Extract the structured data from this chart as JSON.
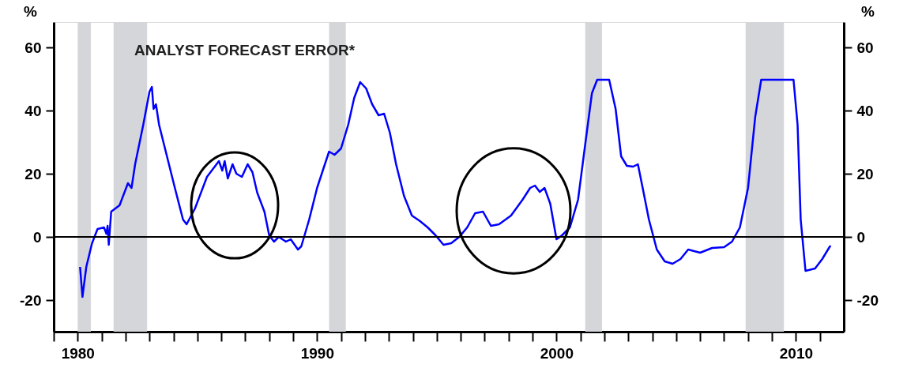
{
  "chart_data": {
    "type": "line",
    "title": "ANALYST FORECAST ERROR*",
    "ylabel": "%",
    "y2label": "%",
    "xlim": [
      1979,
      2012
    ],
    "xticks": [
      {
        "value": 1979,
        "label": null
      },
      1980,
      {
        "value": 1981,
        "label": null
      },
      {
        "value": 1982,
        "label": null
      },
      {
        "value": 1983,
        "label": null
      },
      {
        "value": 1984,
        "label": null
      },
      {
        "value": 1985,
        "label": null
      },
      {
        "value": 1986,
        "label": null
      },
      {
        "value": 1987,
        "label": null
      },
      {
        "value": 1988,
        "label": null
      },
      {
        "value": 1989,
        "label": null
      },
      1990,
      {
        "value": 1991,
        "label": null
      },
      {
        "value": 1992,
        "label": null
      },
      {
        "value": 1993,
        "label": null
      },
      {
        "value": 1994,
        "label": null
      },
      {
        "value": 1995,
        "label": null
      },
      {
        "value": 1996,
        "label": null
      },
      {
        "value": 1997,
        "label": null
      },
      {
        "value": 1998,
        "label": null
      },
      {
        "value": 1999,
        "label": null
      },
      2000,
      {
        "value": 2001,
        "label": null
      },
      {
        "value": 2002,
        "label": null
      },
      {
        "value": 2003,
        "label": null
      },
      {
        "value": 2004,
        "label": null
      },
      {
        "value": 2005,
        "label": null
      },
      {
        "value": 2006,
        "label": null
      },
      {
        "value": 2007,
        "label": null
      },
      {
        "value": 2008,
        "label": null
      },
      {
        "value": 2009,
        "label": null
      },
      2010,
      {
        "value": 2011,
        "label": null
      }
    ],
    "ylim": [
      -30,
      68
    ],
    "yticks": [
      -20,
      0,
      20,
      40,
      60
    ],
    "y2lim": [
      -30,
      68
    ],
    "y2ticks": [
      -20,
      0,
      20,
      40,
      60
    ],
    "grid": false,
    "marker": "none",
    "line_style": "solid",
    "x": [
      1980.1,
      1980.2,
      1980.36,
      1980.6,
      1980.83,
      1981.1,
      1981.2,
      1981.25,
      1981.3,
      1981.4,
      1981.75,
      1982.1,
      1982.25,
      1982.4,
      1982.74,
      1983.0,
      1983.1,
      1983.17,
      1983.27,
      1983.4,
      1983.73,
      1984.06,
      1984.4,
      1984.55,
      1984.9,
      1985.4,
      1985.9,
      1986.04,
      1986.14,
      1986.27,
      1986.47,
      1986.63,
      1986.86,
      1987.1,
      1987.3,
      1987.5,
      1987.8,
      1988.0,
      1988.2,
      1988.4,
      1988.7,
      1988.9,
      1989.2,
      1989.34,
      1989.67,
      1990.0,
      1990.26,
      1990.5,
      1990.73,
      1991.0,
      1991.3,
      1991.55,
      1991.8,
      1992.05,
      1992.3,
      1992.57,
      1992.8,
      1993.04,
      1993.3,
      1993.63,
      1993.96,
      1994.3,
      1994.62,
      1994.95,
      1995.28,
      1995.6,
      1995.94,
      1996.27,
      1996.6,
      1996.93,
      1997.26,
      1997.6,
      1998.1,
      1998.58,
      1998.9,
      1999.1,
      1999.3,
      1999.5,
      1999.74,
      2000.0,
      2000.23,
      2000.56,
      2000.9,
      2001.22,
      2001.48,
      2001.7,
      2002.2,
      2002.47,
      2002.7,
      2002.94,
      2003.2,
      2003.4,
      2003.6,
      2003.86,
      2004.19,
      2004.52,
      2004.85,
      2005.18,
      2005.5,
      2006.0,
      2006.5,
      2007.0,
      2007.33,
      2007.66,
      2008.0,
      2008.3,
      2008.55,
      2009.9,
      2010.07,
      2010.2,
      2010.4,
      2010.8,
      2011.1,
      2011.4,
      2011.45
    ],
    "series": [
      {
        "color": "#0000ff",
        "values": [
          -9.5,
          -19,
          -9.5,
          -2,
          2.5,
          3,
          1,
          3.5,
          -2.5,
          8,
          10,
          17,
          15.5,
          23,
          35.5,
          46,
          47.5,
          40.5,
          42,
          35.5,
          25.5,
          15.5,
          5.5,
          4,
          9,
          19,
          24,
          21,
          24,
          18.5,
          23,
          20,
          19,
          23,
          20.5,
          14,
          8,
          0.5,
          -1.5,
          0,
          -1.5,
          -0.75,
          -4,
          -3,
          5.5,
          15.5,
          21.5,
          27,
          26,
          28,
          35.5,
          44,
          49,
          47,
          42,
          38.5,
          39,
          33,
          23,
          13,
          6.75,
          5,
          3,
          0.5,
          -2.5,
          -2,
          0,
          3,
          7.5,
          8,
          3.5,
          4,
          6.75,
          11.75,
          15.5,
          16.25,
          14.25,
          15.5,
          10.5,
          -0.75,
          0.5,
          3,
          11.75,
          30.5,
          45.5,
          49.75,
          49.75,
          40.5,
          25.5,
          22.5,
          22.25,
          23,
          15.5,
          5.5,
          -4,
          -7.75,
          -8.5,
          -7,
          -4,
          -5,
          -3.5,
          -3.25,
          -1.5,
          3,
          15.5,
          38,
          49.75,
          49.75,
          35.5,
          5.5,
          -10.75,
          -10,
          -7,
          -3.25,
          -2.75
        ]
      }
    ],
    "ref_lines": [
      {
        "axis": "y",
        "value": 0,
        "color": "#000000",
        "line_style": "solid"
      }
    ],
    "bands": [
      {
        "axis": "x",
        "from": 1980.0,
        "to": 1980.55,
        "color": "#d4d6da"
      },
      {
        "axis": "x",
        "from": 1981.5,
        "to": 1982.9,
        "color": "#d4d6da"
      },
      {
        "axis": "x",
        "from": 1990.5,
        "to": 1991.2,
        "color": "#d4d6da"
      },
      {
        "axis": "x",
        "from": 2001.2,
        "to": 2001.9,
        "color": "#d4d6da"
      },
      {
        "axis": "x",
        "from": 2007.9,
        "to": 2009.5,
        "color": "#d4d6da"
      }
    ]
  }
}
